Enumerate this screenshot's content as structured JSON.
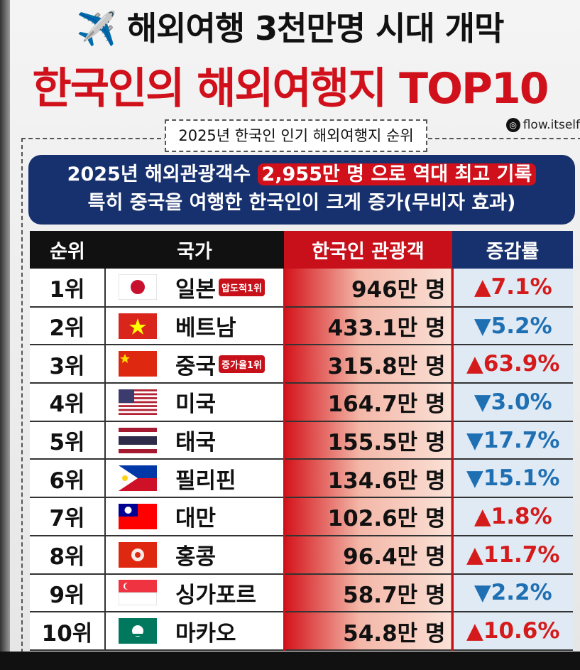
{
  "title_line1": "✈️ 해외여행 3천만명 시대 개막",
  "title_line2": "한국인의 해외여행지 TOP10",
  "instagram_handle": "flow.itself",
  "subtitle": "2025년 한국인 인기 해외여행지 순위",
  "banner": {
    "line1_pre": "2025년 해외관광객수 ",
    "line1_highlight": "2,955만 명 으로 역대 최고 기록",
    "line2": "특히 중국을 여행한 한국인이 크게 증가(무비자 효과)"
  },
  "chart_data": {
    "type": "table",
    "columns": [
      "순위",
      "국가",
      "한국인 관광객",
      "증감률"
    ],
    "rows": [
      {
        "rank": "1위",
        "country": "일본",
        "flag": "jp",
        "badge": "압도적1위",
        "visitors": "946만 명",
        "change": "▲7.1%",
        "dir": "up"
      },
      {
        "rank": "2위",
        "country": "베트남",
        "flag": "vn",
        "visitors": "433.1만 명",
        "change": "▼5.2%",
        "dir": "down"
      },
      {
        "rank": "3위",
        "country": "중국",
        "flag": "cn",
        "badge": "증가율1위",
        "visitors": "315.8만 명",
        "change": "▲63.9%",
        "dir": "up"
      },
      {
        "rank": "4위",
        "country": "미국",
        "flag": "us",
        "visitors": "164.7만 명",
        "change": "▼3.0%",
        "dir": "down"
      },
      {
        "rank": "5위",
        "country": "태국",
        "flag": "th",
        "visitors": "155.5만 명",
        "change": "▼17.7%",
        "dir": "down"
      },
      {
        "rank": "6위",
        "country": "필리핀",
        "flag": "ph",
        "visitors": "134.6만 명",
        "change": "▼15.1%",
        "dir": "down"
      },
      {
        "rank": "7위",
        "country": "대만",
        "flag": "tw",
        "visitors": "102.6만 명",
        "change": "▲1.8%",
        "dir": "up"
      },
      {
        "rank": "8위",
        "country": "홍콩",
        "flag": "hk",
        "visitors": "96.4만 명",
        "change": "▲11.7%",
        "dir": "up"
      },
      {
        "rank": "9위",
        "country": "싱가포르",
        "flag": "sg",
        "visitors": "58.7만 명",
        "change": "▼2.2%",
        "dir": "down"
      },
      {
        "rank": "10위",
        "country": "마카오",
        "flag": "mo",
        "visitors": "54.8만 명",
        "change": "▲10.6%",
        "dir": "up"
      }
    ]
  }
}
